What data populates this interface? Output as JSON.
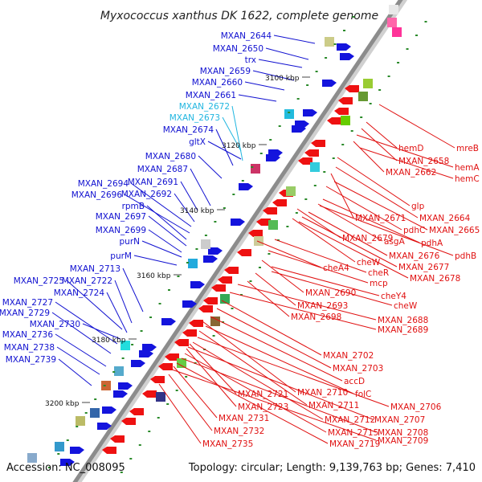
{
  "title": "Myxococcus xanthus DK 1622, complete genome",
  "footer": {
    "accession": "Accession: NC_008095",
    "summary": "Topology: circular; Length: 9,139,763 bp; Genes: 7,410"
  },
  "colors": {
    "backbone": "#8c8c8c",
    "left_label": "#1010d0",
    "left_label_alt": "#21b6e0",
    "right_label": "#e01010",
    "forward_feature": "#1414dd",
    "reverse_feature": "#ee1111",
    "gene_tick": "#2a8a2a"
  },
  "kbp_marks": [
    "3100 kbp",
    "3120 kbp",
    "3140 kbp",
    "3160 kbp",
    "3180 kbp",
    "3200 kbp"
  ],
  "left_labels": [
    "MXAN_2644",
    "MXAN_2650",
    "trx",
    "MXAN_2659",
    "MXAN_2660",
    "MXAN_2661",
    "MXAN_2672",
    "MXAN_2673",
    "MXAN_2674",
    "gltX",
    "MXAN_2680",
    "MXAN_2687",
    "MXAN_2691",
    "MXAN_2694",
    "MXAN_2692",
    "MXAN_2696",
    "rpmB",
    "MXAN_2697",
    "MXAN_2699",
    "purN",
    "purM",
    "MXAN_2713",
    "MXAN_2725",
    "MXAN_2722",
    "MXAN_2724",
    "MXAN_2727",
    "MXAN_2729",
    "MXAN_2730",
    "MXAN_2736",
    "MXAN_2738",
    "MXAN_2739"
  ],
  "right_labels": [
    "mreB",
    "hemD",
    "MXAN_2658",
    "hemA",
    "MXAN_2662",
    "hemC",
    "glp",
    "MXAN_2671",
    "MXAN_2664",
    "pdhC",
    "MXAN_2665",
    "MXAN_2679",
    "asgA",
    "pdhA",
    "MXAN_2676",
    "pdhB",
    "cheW",
    "MXAN_2677",
    "cheA4",
    "cheR",
    "MXAN_2678",
    "mcp",
    "MXAN_2690",
    "cheY4",
    "MXAN_2693",
    "cheW",
    "MXAN_2698",
    "MXAN_2688",
    "MXAN_2689",
    "MXAN_2702",
    "MXAN_2703",
    "accD",
    "MXAN_2710",
    "folC",
    "MXAN_2721",
    "MXAN_2711",
    "MXAN_2706",
    "MXAN_2723",
    "MXAN_2712",
    "MXAN_2707",
    "MXAN_2731",
    "MXAN_2715",
    "MXAN_2708",
    "MXAN_2732",
    "MXAN_2719",
    "MXAN_2709",
    "MXAN_2735"
  ]
}
